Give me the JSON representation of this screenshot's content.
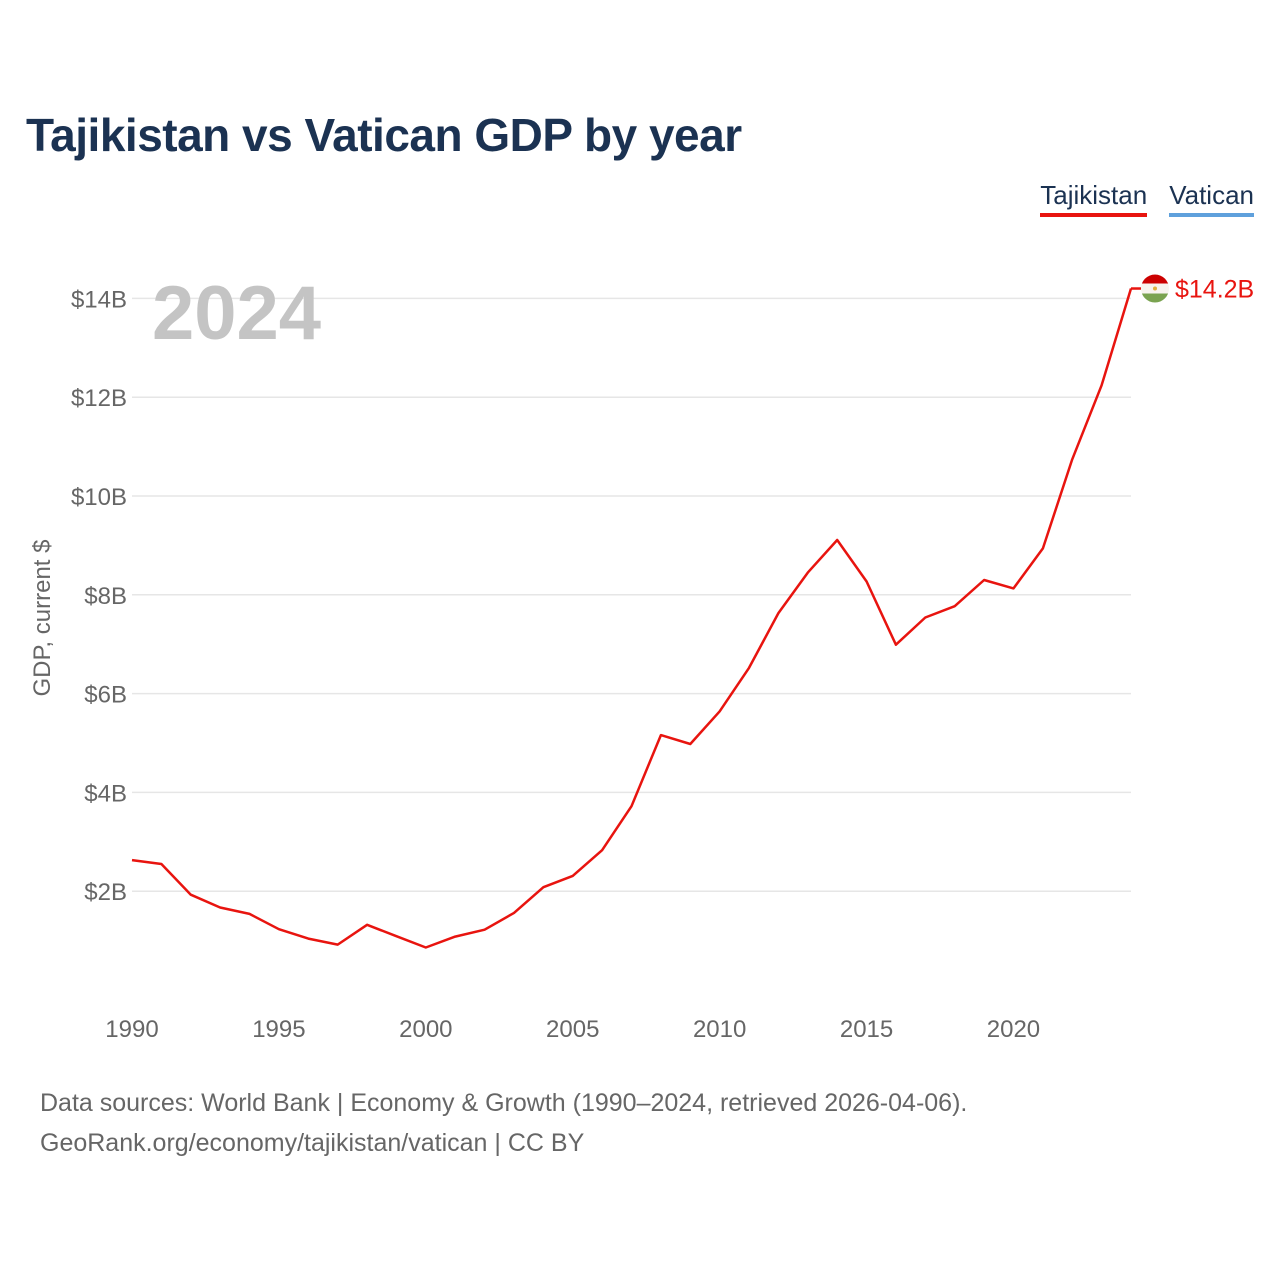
{
  "colors": {
    "title": "#1b3252",
    "tajikistan": "#e8140f",
    "vatican": "#5fa0dc",
    "grid": "#e6e6e6",
    "tick": "#666666",
    "year_watermark": "#c4c4c4"
  },
  "chart_data": {
    "type": "line",
    "title": "Tajikistan vs Vatican GDP by year",
    "xlabel": "",
    "ylabel": "GDP, current $",
    "xlim": [
      1990,
      2024
    ],
    "ylim": [
      0,
      14.5
    ],
    "x_ticks": [
      1990,
      1995,
      2000,
      2005,
      2010,
      2015,
      2020
    ],
    "x_tick_labels": [
      "1990",
      "1995",
      "2000",
      "2005",
      "2010",
      "2015",
      "2020"
    ],
    "y_ticks": [
      2,
      4,
      6,
      8,
      10,
      12,
      14
    ],
    "y_tick_labels": [
      "$2B",
      "$4B",
      "$6B",
      "$8B",
      "$10B",
      "$12B",
      "$14B"
    ],
    "current_year": "2024",
    "legend": [
      "Tajikistan",
      "Vatican"
    ],
    "series": [
      {
        "name": "Tajikistan",
        "color": "#e8140f",
        "x": [
          1990,
          1991,
          1992,
          1993,
          1994,
          1995,
          1996,
          1997,
          1998,
          1999,
          2000,
          2001,
          2002,
          2003,
          2004,
          2005,
          2006,
          2007,
          2008,
          2009,
          2010,
          2011,
          2012,
          2013,
          2014,
          2015,
          2016,
          2017,
          2018,
          2019,
          2020,
          2021,
          2022,
          2023,
          2024
        ],
        "values": [
          2.63,
          2.55,
          1.93,
          1.67,
          1.54,
          1.23,
          1.04,
          0.92,
          1.32,
          1.09,
          0.86,
          1.08,
          1.22,
          1.56,
          2.08,
          2.31,
          2.83,
          3.72,
          5.16,
          4.98,
          5.64,
          6.52,
          7.63,
          8.45,
          9.11,
          8.27,
          6.99,
          7.54,
          7.77,
          8.3,
          8.13,
          8.94,
          10.74,
          12.24,
          14.2
        ],
        "end_label": "$14.2B"
      },
      {
        "name": "Vatican",
        "color": "#5fa0dc",
        "x": [],
        "values": []
      }
    ]
  },
  "footer": {
    "line1": "Data sources: World Bank | Economy & Growth (1990–2024, retrieved 2026-04-06).",
    "line2": "GeoRank.org/economy/tajikistan/vatican | CC BY"
  }
}
